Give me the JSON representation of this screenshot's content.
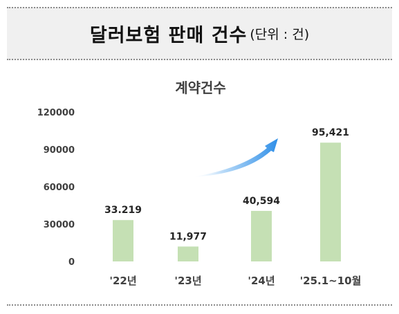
{
  "header": {
    "title": "달러보험 판매 건수",
    "unit": "(단위 : 건)"
  },
  "colors": {
    "bar": "#c5e0b4",
    "arrow": "#2f8fe8",
    "header_bg": "#f0f0f0"
  },
  "chart_data": {
    "type": "bar",
    "title": "계약건수",
    "categories": [
      "'22년",
      "'23년",
      "'24년",
      "'25.1~10월"
    ],
    "values": [
      33219,
      11977,
      40594,
      95421
    ],
    "data_labels": [
      "33.219",
      "11,977",
      "40,594",
      "95,421"
    ],
    "yticks": [
      "120000",
      "90000",
      "60000",
      "30000",
      "0"
    ],
    "ytick_values": [
      120000,
      90000,
      60000,
      30000,
      0
    ],
    "ylim": [
      0,
      120000
    ],
    "xlabel": "",
    "ylabel": "",
    "grid": false,
    "annotation": "upward-trend-arrow"
  }
}
